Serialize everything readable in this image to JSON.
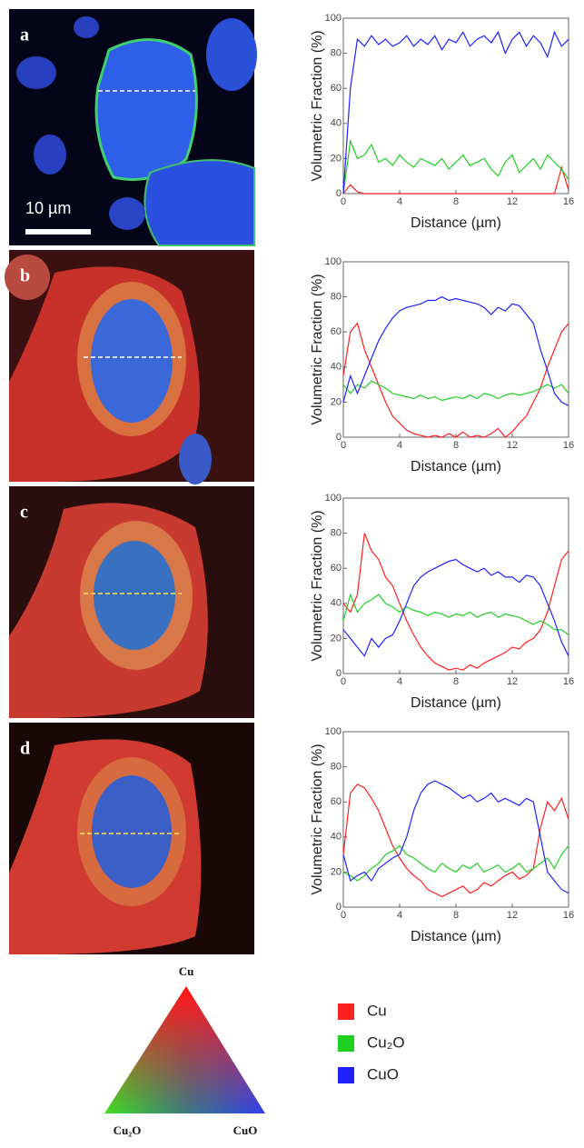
{
  "panels": [
    {
      "label": "a"
    },
    {
      "label": "b"
    },
    {
      "label": "c"
    },
    {
      "label": "d"
    }
  ],
  "scale_bar": "10 µm",
  "ternary": {
    "top": "Cu",
    "left": "Cu₂O",
    "right": "CuO"
  },
  "chart_data": [
    {
      "type": "line",
      "x_label": "Distance (µm)",
      "y_label": "Volumetric Fraction (%)",
      "x": [
        0,
        0.5,
        1,
        1.5,
        2,
        2.5,
        3,
        3.5,
        4,
        4.5,
        5,
        5.5,
        6,
        6.5,
        7,
        7.5,
        8,
        8.5,
        9,
        9.5,
        10,
        10.5,
        11,
        11.5,
        12,
        12.5,
        13,
        13.5,
        14,
        14.5,
        15,
        15.5,
        16
      ],
      "xlim": [
        0,
        16
      ],
      "xticks": [
        0,
        4,
        8,
        12,
        16
      ],
      "ylim": [
        0,
        100
      ],
      "yticks": [
        0,
        20,
        40,
        60,
        80,
        100
      ],
      "series": [
        {
          "name": "Cu",
          "color": "#ff2020",
          "values": [
            0,
            5,
            1,
            0,
            0,
            0,
            0,
            0,
            0,
            0,
            0,
            0,
            0,
            0,
            0,
            0,
            0,
            0,
            0,
            0,
            0,
            0,
            0,
            0,
            0,
            0,
            0,
            0,
            0,
            0,
            0,
            15,
            2
          ]
        },
        {
          "name": "Cu₂O",
          "color": "#20d020",
          "values": [
            0,
            30,
            20,
            22,
            28,
            18,
            20,
            16,
            22,
            18,
            15,
            20,
            18,
            16,
            20,
            14,
            18,
            22,
            16,
            18,
            20,
            14,
            10,
            18,
            22,
            12,
            16,
            20,
            14,
            22,
            18,
            14,
            8
          ]
        },
        {
          "name": "CuO",
          "color": "#2020ff",
          "values": [
            0,
            60,
            88,
            84,
            90,
            85,
            88,
            84,
            86,
            90,
            84,
            88,
            85,
            90,
            82,
            88,
            86,
            92,
            84,
            88,
            90,
            86,
            92,
            80,
            88,
            92,
            84,
            90,
            86,
            78,
            92,
            84,
            88
          ]
        }
      ]
    },
    {
      "type": "line",
      "x_label": "Distance (µm)",
      "y_label": "Volumetric Fraction (%)",
      "x": [
        0,
        0.5,
        1,
        1.5,
        2,
        2.5,
        3,
        3.5,
        4,
        4.5,
        5,
        5.5,
        6,
        6.5,
        7,
        7.5,
        8,
        8.5,
        9,
        9.5,
        10,
        10.5,
        11,
        11.5,
        12,
        12.5,
        13,
        13.5,
        14,
        14.5,
        15,
        15.5,
        16
      ],
      "xlim": [
        0,
        16
      ],
      "xticks": [
        0,
        4,
        8,
        12,
        16
      ],
      "ylim": [
        0,
        100
      ],
      "yticks": [
        0,
        20,
        40,
        60,
        80,
        100
      ],
      "series": [
        {
          "name": "Cu",
          "color": "#ff2020",
          "values": [
            35,
            60,
            65,
            50,
            40,
            30,
            20,
            12,
            8,
            4,
            2,
            1,
            0,
            1,
            0,
            2,
            0,
            3,
            0,
            1,
            0,
            2,
            5,
            0,
            3,
            8,
            12,
            20,
            28,
            40,
            50,
            60,
            65
          ]
        },
        {
          "name": "Cu₂O",
          "color": "#20d020",
          "values": [
            30,
            25,
            30,
            28,
            32,
            30,
            28,
            25,
            24,
            23,
            22,
            24,
            22,
            23,
            21,
            22,
            23,
            22,
            24,
            22,
            25,
            24,
            22,
            24,
            25,
            24,
            25,
            26,
            28,
            30,
            28,
            30,
            25
          ]
        },
        {
          "name": "CuO",
          "color": "#2020ff",
          "values": [
            20,
            35,
            25,
            35,
            45,
            55,
            62,
            68,
            72,
            74,
            75,
            76,
            78,
            78,
            80,
            78,
            79,
            78,
            77,
            76,
            74,
            70,
            74,
            72,
            76,
            75,
            70,
            65,
            50,
            38,
            25,
            20,
            18
          ]
        }
      ]
    },
    {
      "type": "line",
      "x_label": "Distance (µm)",
      "y_label": "Volumetric Fraction (%)",
      "x": [
        0,
        0.5,
        1,
        1.5,
        2,
        2.5,
        3,
        3.5,
        4,
        4.5,
        5,
        5.5,
        6,
        6.5,
        7,
        7.5,
        8,
        8.5,
        9,
        9.5,
        10,
        10.5,
        11,
        11.5,
        12,
        12.5,
        13,
        13.5,
        14,
        14.5,
        15,
        15.5,
        16
      ],
      "xlim": [
        0,
        16
      ],
      "xticks": [
        0,
        4,
        8,
        12,
        16
      ],
      "ylim": [
        0,
        100
      ],
      "yticks": [
        0,
        20,
        40,
        60,
        80,
        100
      ],
      "series": [
        {
          "name": "Cu",
          "color": "#ff2020",
          "values": [
            40,
            35,
            45,
            80,
            70,
            65,
            55,
            50,
            40,
            30,
            22,
            15,
            10,
            6,
            4,
            2,
            3,
            2,
            5,
            3,
            6,
            8,
            10,
            12,
            15,
            14,
            18,
            20,
            25,
            35,
            50,
            65,
            70
          ]
        },
        {
          "name": "Cu₂O",
          "color": "#20d020",
          "values": [
            30,
            45,
            35,
            40,
            42,
            45,
            40,
            38,
            35,
            38,
            36,
            35,
            33,
            35,
            34,
            32,
            34,
            33,
            35,
            32,
            34,
            35,
            32,
            34,
            33,
            32,
            30,
            28,
            30,
            28,
            25,
            25,
            22
          ]
        },
        {
          "name": "CuO",
          "color": "#2020ff",
          "values": [
            25,
            20,
            15,
            10,
            20,
            15,
            20,
            22,
            30,
            40,
            50,
            55,
            58,
            60,
            62,
            64,
            65,
            62,
            60,
            58,
            60,
            56,
            58,
            55,
            55,
            52,
            56,
            55,
            50,
            40,
            30,
            18,
            10
          ]
        }
      ]
    },
    {
      "type": "line",
      "x_label": "Distance (µm)",
      "y_label": "Volumetric Fraction (%)",
      "x": [
        0,
        0.5,
        1,
        1.5,
        2,
        2.5,
        3,
        3.5,
        4,
        4.5,
        5,
        5.5,
        6,
        6.5,
        7,
        7.5,
        8,
        8.5,
        9,
        9.5,
        10,
        10.5,
        11,
        11.5,
        12,
        12.5,
        13,
        13.5,
        14,
        14.5,
        15,
        15.5,
        16
      ],
      "xlim": [
        0,
        16
      ],
      "xticks": [
        0,
        4,
        8,
        12,
        16
      ],
      "ylim": [
        0,
        100
      ],
      "yticks": [
        0,
        20,
        40,
        60,
        80,
        100
      ],
      "series": [
        {
          "name": "Cu",
          "color": "#ff2020",
          "values": [
            30,
            65,
            70,
            68,
            62,
            55,
            45,
            35,
            28,
            22,
            18,
            15,
            10,
            8,
            6,
            8,
            10,
            12,
            8,
            10,
            14,
            12,
            15,
            18,
            20,
            16,
            18,
            22,
            45,
            60,
            55,
            62,
            50
          ]
        },
        {
          "name": "Cu₂O",
          "color": "#20d020",
          "values": [
            20,
            18,
            15,
            18,
            22,
            25,
            30,
            32,
            35,
            30,
            28,
            25,
            22,
            20,
            25,
            22,
            20,
            24,
            22,
            25,
            20,
            22,
            24,
            20,
            22,
            25,
            20,
            22,
            25,
            28,
            22,
            30,
            35
          ]
        },
        {
          "name": "CuO",
          "color": "#2020ff",
          "values": [
            30,
            15,
            18,
            20,
            15,
            22,
            25,
            28,
            30,
            40,
            55,
            65,
            70,
            72,
            70,
            68,
            65,
            62,
            64,
            60,
            62,
            65,
            60,
            62,
            60,
            58,
            62,
            60,
            40,
            20,
            15,
            10,
            8
          ]
        }
      ]
    }
  ]
}
